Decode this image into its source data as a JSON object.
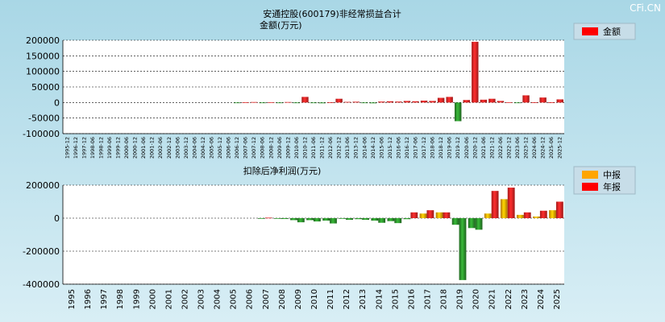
{
  "watermark": "CFi.CN",
  "chart_data": [
    {
      "type": "bar",
      "title": "安通控股(600179)非经常损益合计",
      "ylabel": "金额(万元)",
      "ylim": [
        -100000,
        200000
      ],
      "yticks": [
        200000,
        150000,
        100000,
        50000,
        0,
        -50000,
        -100000
      ],
      "grid": true,
      "legend_position": "top-right",
      "legend": [
        {
          "name": "金额",
          "color": "#ff0000"
        }
      ],
      "categories": [
        "1995-12",
        "1996-12",
        "1997-12",
        "1998-06",
        "1998-12",
        "1999-06",
        "1999-12",
        "2000-06",
        "2000-12",
        "2001-06",
        "2001-12",
        "2002-06",
        "2002-12",
        "2003-06",
        "2003-12",
        "2004-06",
        "2004-12",
        "2005-06",
        "2005-12",
        "2006-06",
        "2006-12",
        "2007-06",
        "2007-12",
        "2008-06",
        "2008-12",
        "2009-06",
        "2009-12",
        "2010-06",
        "2010-12",
        "2011-06",
        "2011-12",
        "2012-06",
        "2012-12",
        "2013-06",
        "2013-12",
        "2014-06",
        "2014-12",
        "2015-06",
        "2015-12",
        "2016-06",
        "2016-12",
        "2017-06",
        "2017-12",
        "2018-06",
        "2018-12",
        "2019-06",
        "2019-12",
        "2020-06",
        "2020-12",
        "2021-06",
        "2021-12",
        "2022-06",
        "2022-12",
        "2023-06",
        "2023-12",
        "2024-06",
        "2024-12",
        "2025-06",
        "2025-12"
      ],
      "values": [
        0,
        0,
        0,
        0,
        0,
        0,
        0,
        0,
        0,
        0,
        0,
        0,
        0,
        0,
        0,
        0,
        0,
        0,
        0,
        0,
        -1500,
        800,
        1500,
        -1000,
        1000,
        -500,
        1500,
        -500,
        18000,
        -2000,
        -2500,
        500,
        12000,
        2000,
        2500,
        -2000,
        -2500,
        3000,
        4000,
        3000,
        5000,
        4000,
        6000,
        5000,
        15000,
        18000,
        -60000,
        8000,
        195000,
        9000,
        12000,
        5000,
        1000,
        -500,
        23000,
        500,
        16000,
        500,
        10000
      ]
    },
    {
      "type": "bar",
      "title": "扣除后净利润(万元)",
      "ylim": [
        -400000,
        200000
      ],
      "yticks": [
        200000,
        0,
        -200000,
        -400000
      ],
      "grid": true,
      "legend_position": "top-right",
      "legend": [
        {
          "name": "中报",
          "color": "#ffa500"
        },
        {
          "name": "年报",
          "color": "#ff0000"
        }
      ],
      "categories": [
        "1995",
        "1996",
        "1997",
        "1998",
        "1999",
        "2000",
        "2001",
        "2002",
        "2003",
        "2004",
        "2005",
        "2006",
        "2007",
        "2008",
        "2009",
        "2010",
        "2011",
        "2012",
        "2013",
        "2014",
        "2015",
        "2016",
        "2017",
        "2018",
        "2019",
        "2020",
        "2021",
        "2022",
        "2023",
        "2024",
        "2025"
      ],
      "series": [
        {
          "name": "中报",
          "values": [
            null,
            null,
            null,
            null,
            null,
            null,
            null,
            null,
            null,
            null,
            null,
            null,
            -2000,
            -3000,
            -12000,
            -12000,
            -15000,
            -4000,
            -6000,
            -15000,
            -18000,
            -6000,
            28000,
            35000,
            -40000,
            -60000,
            28000,
            115000,
            20000,
            10000,
            48000
          ]
        },
        {
          "name": "年报",
          "values": [
            null,
            null,
            null,
            null,
            null,
            null,
            null,
            null,
            null,
            null,
            null,
            null,
            3000,
            -5000,
            -25000,
            -20000,
            -32000,
            -10000,
            -10000,
            -28000,
            -30000,
            35000,
            48000,
            35000,
            -375000,
            -70000,
            165000,
            185000,
            35000,
            45000,
            100000
          ]
        }
      ]
    }
  ]
}
